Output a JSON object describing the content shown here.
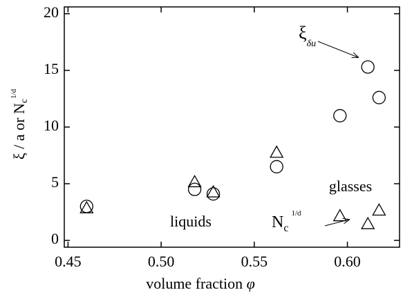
{
  "chart_data": {
    "type": "scatter",
    "x_label": {
      "text": "volume fraction ",
      "symbol": "φ"
    },
    "y_label": {
      "main": "ξ / a or N",
      "subscript": "c",
      "superscript": "1/d"
    },
    "xlim": [
      0.448,
      0.628
    ],
    "ylim": [
      -0.6,
      20.6
    ],
    "xticks": [
      0.45,
      {
        "value": 0.5,
        "label": "0.50"
      },
      0.55,
      {
        "value": 0.6,
        "label": "0.60"
      }
    ],
    "yticks": [
      0,
      5,
      10,
      15,
      20
    ],
    "series": [
      {
        "marker": "circle",
        "color": "#000000",
        "x": [
          0.46,
          0.518,
          0.528,
          0.562,
          0.596,
          0.611,
          0.617
        ],
        "values": [
          3.0,
          4.5,
          4.1,
          6.5,
          11.0,
          15.3,
          12.6
        ]
      },
      {
        "marker": "triangle",
        "color": "#000000",
        "x": [
          0.46,
          0.518,
          0.528,
          0.562,
          0.596,
          0.611,
          0.617
        ],
        "values": [
          2.8,
          5.1,
          4.2,
          7.7,
          2.1,
          1.4,
          2.6
        ]
      }
    ],
    "annotations": {
      "xi": {
        "text": "ξ",
        "subscript": "δu"
      },
      "glasses": "glasses",
      "liquids": "liquids",
      "nc": {
        "text": "N",
        "subscript": "c",
        "superscript": "1/d"
      }
    }
  }
}
